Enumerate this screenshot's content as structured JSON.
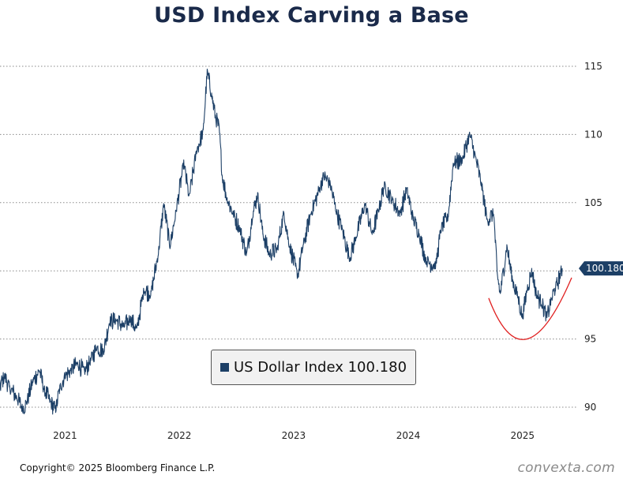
{
  "chart_data": {
    "type": "line",
    "title": "USD Index Carving a Base",
    "y_ticks": [
      90,
      95,
      100,
      105,
      110,
      115
    ],
    "x_ticks": [
      "2021",
      "2022",
      "2023",
      "2024",
      "2025"
    ],
    "ylim": [
      89.2,
      117
    ],
    "xlim": [
      "2020-08",
      "2025-11"
    ],
    "grid": true,
    "last_value_label": "100.180",
    "legend": {
      "placement": "bottom-center",
      "label": "US Dollar Index 100.180"
    },
    "series": [
      {
        "name": "US Dollar Index",
        "color": "#1c3f66",
        "points": [
          [
            "2020-08-15",
            90.6
          ],
          [
            "2020-09-20",
            91.3
          ],
          [
            "2020-10-20",
            90.6
          ],
          [
            "2020-11-15",
            90.7
          ],
          [
            "2020-12-01",
            91.3
          ],
          [
            "2020-12-20",
            92.3
          ],
          [
            "2021-01-05",
            91.4
          ],
          [
            "2021-01-28",
            90.7
          ],
          [
            "2021-02-15",
            89.9
          ],
          [
            "2021-02-28",
            90.3
          ],
          [
            "2021-03-20",
            91.9
          ],
          [
            "2021-04-10",
            92.7
          ],
          [
            "2021-04-25",
            91.3
          ],
          [
            "2021-05-15",
            90.4
          ],
          [
            "2021-06-01",
            89.8
          ],
          [
            "2021-06-15",
            91.5
          ],
          [
            "2021-07-01",
            92.3
          ],
          [
            "2021-07-20",
            92.7
          ],
          [
            "2021-08-10",
            93.2
          ],
          [
            "2021-09-01",
            92.6
          ],
          [
            "2021-09-20",
            93.4
          ],
          [
            "2021-10-10",
            94.4
          ],
          [
            "2021-11-01",
            94.1
          ],
          [
            "2021-11-20",
            96.3
          ],
          [
            "2021-12-10",
            96.4
          ],
          [
            "2022-01-05",
            95.9
          ],
          [
            "2022-01-25",
            96.5
          ],
          [
            "2022-02-15",
            95.7
          ],
          [
            "2022-03-10",
            98.6
          ],
          [
            "2022-04-01",
            98.3
          ],
          [
            "2022-04-25",
            101.3
          ],
          [
            "2022-05-12",
            104.9
          ],
          [
            "2022-06-01",
            101.8
          ],
          [
            "2022-06-20",
            104.3
          ],
          [
            "2022-07-15",
            107.9
          ],
          [
            "2022-08-01",
            105.4
          ],
          [
            "2022-08-25",
            108.8
          ],
          [
            "2022-09-15",
            110.2
          ],
          [
            "2022-09-28",
            114.6
          ],
          [
            "2022-10-12",
            112.9
          ],
          [
            "2022-10-25",
            111.2
          ],
          [
            "2022-11-05",
            110.5
          ],
          [
            "2022-11-15",
            106.9
          ],
          [
            "2022-12-01",
            105.2
          ],
          [
            "2022-12-20",
            104.2
          ],
          [
            "2023-01-10",
            103.1
          ],
          [
            "2023-02-01",
            101.2
          ],
          [
            "2023-02-20",
            104.1
          ],
          [
            "2023-03-08",
            105.6
          ],
          [
            "2023-03-25",
            102.7
          ],
          [
            "2023-04-14",
            101.2
          ],
          [
            "2023-05-10",
            101.6
          ],
          [
            "2023-05-31",
            104.3
          ],
          [
            "2023-06-15",
            102.1
          ],
          [
            "2023-07-14",
            99.6
          ],
          [
            "2023-07-31",
            101.8
          ],
          [
            "2023-08-25",
            104.2
          ],
          [
            "2023-09-25",
            106.2
          ],
          [
            "2023-10-03",
            107.0
          ],
          [
            "2023-10-25",
            106.4
          ],
          [
            "2023-11-15",
            104.3
          ],
          [
            "2023-12-01",
            103.2
          ],
          [
            "2023-12-27",
            100.9
          ],
          [
            "2024-01-15",
            102.4
          ],
          [
            "2024-02-14",
            104.9
          ],
          [
            "2024-03-08",
            102.7
          ],
          [
            "2024-03-29",
            104.5
          ],
          [
            "2024-04-16",
            106.3
          ],
          [
            "2024-05-10",
            105.2
          ],
          [
            "2024-06-05",
            104.2
          ],
          [
            "2024-06-26",
            106.0
          ],
          [
            "2024-07-17",
            103.8
          ],
          [
            "2024-08-05",
            102.7
          ],
          [
            "2024-08-27",
            100.7
          ],
          [
            "2024-09-27",
            100.4
          ],
          [
            "2024-10-15",
            103.2
          ],
          [
            "2024-11-05",
            103.9
          ],
          [
            "2024-11-22",
            107.9
          ],
          [
            "2024-12-20",
            108.1
          ],
          [
            "2025-01-13",
            110.0
          ],
          [
            "2025-01-31",
            108.4
          ],
          [
            "2025-02-20",
            106.3
          ],
          [
            "2025-03-10",
            103.7
          ],
          [
            "2025-03-31",
            104.2
          ],
          [
            "2025-04-11",
            99.8
          ],
          [
            "2025-04-21",
            98.3
          ],
          [
            "2025-05-12",
            101.8
          ],
          [
            "2025-05-30",
            99.3
          ],
          [
            "2025-06-15",
            98.2
          ],
          [
            "2025-07-01",
            96.6
          ],
          [
            "2025-07-16",
            98.7
          ],
          [
            "2025-07-31",
            100.0
          ],
          [
            "2025-08-15",
            98.2
          ],
          [
            "2025-08-30",
            97.7
          ],
          [
            "2025-09-17",
            96.6
          ],
          [
            "2025-09-30",
            97.8
          ],
          [
            "2025-10-15",
            98.8
          ],
          [
            "2025-10-31",
            99.8
          ],
          [
            "2025-11-05",
            100.18
          ]
        ]
      }
    ],
    "annotation": {
      "type": "curve",
      "color": "#e02020",
      "points": [
        [
          "2025-03-15",
          98.0
        ],
        [
          "2025-07-15",
          95.0
        ],
        [
          "2025-12-05",
          99.5
        ]
      ]
    }
  },
  "footer": {
    "copyright": "Copyright© 2025 Bloomberg Finance L.P.",
    "watermark": "convexta.com"
  }
}
